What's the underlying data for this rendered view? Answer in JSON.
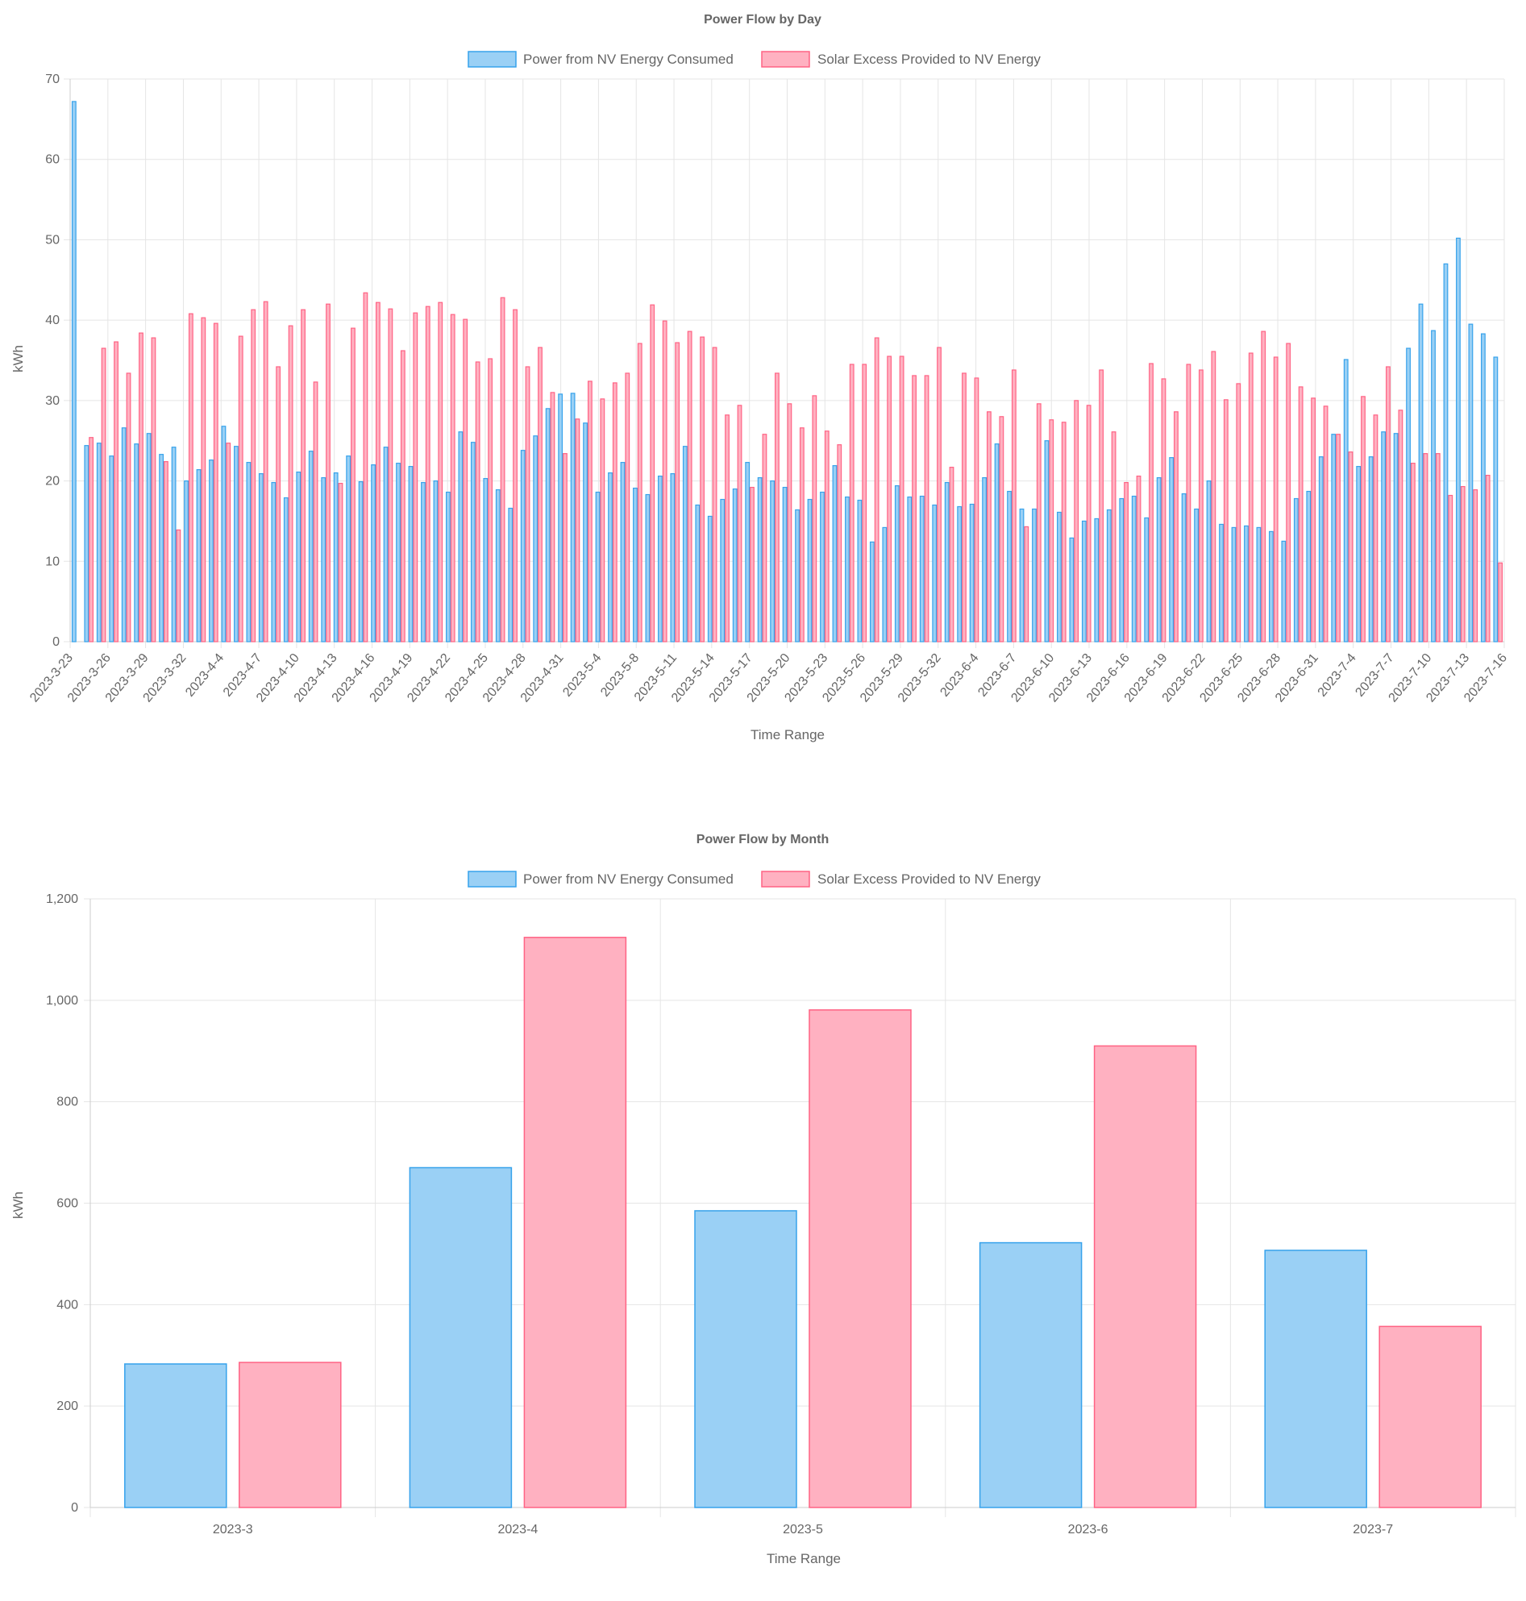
{
  "chart_data": [
    {
      "type": "bar",
      "title": "Power Flow by Day",
      "xlabel": "Time Range",
      "ylabel": "kWh",
      "ylim": [
        0,
        70
      ],
      "yticks": [
        "0",
        "10",
        "20",
        "30",
        "40",
        "50",
        "60",
        "70"
      ],
      "grid": true,
      "legend_position": "top",
      "tick_labels": [
        "2023-3-23",
        "2023-3-26",
        "2023-3-29",
        "2023-3-32",
        "2023-4-4",
        "2023-4-7",
        "2023-4-10",
        "2023-4-13",
        "2023-4-16",
        "2023-4-19",
        "2023-4-22",
        "2023-4-25",
        "2023-4-28",
        "2023-4-31",
        "2023-5-4",
        "2023-5-8",
        "2023-5-11",
        "2023-5-14",
        "2023-5-17",
        "2023-5-20",
        "2023-5-23",
        "2023-5-26",
        "2023-5-29",
        "2023-5-32",
        "2023-6-4",
        "2023-6-7",
        "2023-6-10",
        "2023-6-13",
        "2023-6-16",
        "2023-6-19",
        "2023-6-22",
        "2023-6-25",
        "2023-6-28",
        "2023-6-31",
        "2023-7-4",
        "2023-7-7",
        "2023-7-10",
        "2023-7-13",
        "2023-7-16"
      ],
      "series": [
        {
          "name": "Power from NV Energy Consumed",
          "color": "#36a2eb",
          "fill": "#9ad0f5",
          "values": [
            67.2,
            24.4,
            24.7,
            23.1,
            26.6,
            24.6,
            25.9,
            23.3,
            24.2,
            20.0,
            21.4,
            22.6,
            26.8,
            24.3,
            22.3,
            20.9,
            19.8,
            17.9,
            21.1,
            23.7,
            20.4,
            21.0,
            23.1,
            19.9,
            22.0,
            24.2,
            22.2,
            21.8,
            19.8,
            20.0,
            18.6,
            26.1,
            24.8,
            20.3,
            18.9,
            16.6,
            23.8,
            25.6,
            29.0,
            30.8,
            30.9,
            27.2,
            18.6,
            21.0,
            22.3,
            19.1,
            18.3,
            20.6,
            20.9,
            24.3,
            17.0,
            15.6,
            17.7,
            19.0,
            22.3,
            20.4,
            20.0,
            19.2,
            16.4,
            17.7,
            18.6,
            21.9,
            18.0,
            17.6,
            12.4,
            14.2,
            19.4,
            18.0,
            18.1,
            17.0,
            19.8,
            16.8,
            17.1,
            20.4,
            24.6,
            18.7,
            16.5,
            16.5,
            25.0,
            16.1,
            12.9,
            15.0,
            15.3,
            16.4,
            17.8,
            18.1,
            15.4,
            20.4,
            22.9,
            18.4,
            16.5,
            20.0,
            14.6,
            14.2,
            14.4,
            14.2,
            13.7,
            12.5,
            17.8,
            18.7,
            23.0,
            25.8,
            35.1,
            21.8,
            23.0,
            26.1,
            25.9,
            36.5,
            42.0,
            38.7,
            47.0,
            50.2,
            39.5,
            38.3,
            35.4
          ]
        },
        {
          "name": "Solar Excess Provided to NV Energy",
          "color": "#ff6384",
          "fill": "#ffb1c1",
          "values": [
            0,
            25.4,
            36.5,
            37.3,
            33.4,
            38.4,
            37.8,
            22.4,
            13.9,
            40.8,
            40.3,
            39.6,
            24.7,
            38.0,
            41.3,
            42.3,
            34.2,
            39.3,
            41.3,
            32.3,
            42.0,
            19.7,
            39.0,
            43.4,
            42.2,
            41.4,
            36.2,
            40.9,
            41.7,
            42.2,
            40.7,
            40.1,
            34.8,
            35.2,
            42.8,
            41.3,
            34.2,
            36.6,
            31.0,
            23.4,
            27.7,
            32.4,
            30.2,
            32.2,
            33.4,
            37.1,
            41.9,
            39.9,
            37.2,
            38.6,
            37.9,
            36.6,
            28.2,
            29.4,
            19.2,
            25.8,
            33.4,
            29.6,
            26.6,
            30.6,
            26.2,
            24.5,
            34.5,
            34.5,
            37.8,
            35.5,
            35.5,
            33.1,
            33.1,
            36.6,
            21.7,
            33.4,
            32.8,
            28.6,
            28.0,
            33.8,
            14.3,
            29.6,
            27.6,
            27.3,
            30.0,
            29.4,
            33.8,
            26.1,
            19.8,
            20.6,
            34.6,
            32.7,
            28.6,
            34.5,
            33.8,
            36.1,
            30.1,
            32.1,
            35.9,
            38.6,
            35.4,
            37.1,
            31.7,
            30.3,
            29.3,
            25.8,
            23.6,
            30.5,
            28.2,
            34.2,
            28.8,
            22.2,
            23.4,
            23.4,
            18.2,
            19.3,
            18.9,
            20.7,
            9.8
          ]
        }
      ]
    },
    {
      "type": "bar",
      "title": "Power Flow by Month",
      "xlabel": "Time Range",
      "ylabel": "kWh",
      "ylim": [
        0,
        1200
      ],
      "yticks": [
        "0",
        "200",
        "400",
        "600",
        "800",
        "1,000",
        "1,200"
      ],
      "grid": true,
      "legend_position": "top",
      "categories": [
        "2023-3",
        "2023-4",
        "2023-5",
        "2023-6",
        "2023-7"
      ],
      "series": [
        {
          "name": "Power from NV Energy Consumed",
          "color": "#36a2eb",
          "fill": "#9ad0f5",
          "values": [
            283,
            670,
            585,
            522,
            507
          ]
        },
        {
          "name": "Solar Excess Provided to NV Energy",
          "color": "#ff6384",
          "fill": "#ffb1c1",
          "values": [
            286,
            1124,
            981,
            910,
            357
          ]
        }
      ]
    }
  ]
}
